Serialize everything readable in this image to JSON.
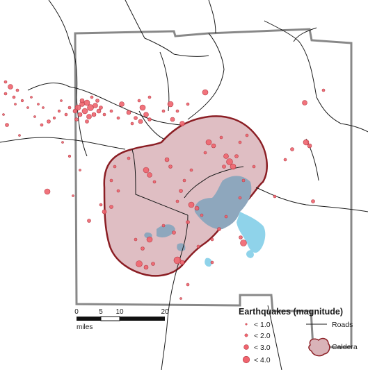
{
  "colors": {
    "quake_fill": "#f0646e",
    "quake_stroke": "#b33a44",
    "caldera_fill": "#d9b3b8",
    "caldera_stroke": "#8b1e24",
    "lake": "#8fd3ea",
    "lake_over_caldera": "#8ea7bd",
    "road": "#1a1a1a",
    "boundary": "#888888"
  },
  "scale_bar": {
    "ticks": [
      "0",
      "5",
      "10",
      "20"
    ],
    "unit": "miles"
  },
  "legend": {
    "title": "Earthquakes (magnitude)",
    "magnitudes": [
      "< 1.0",
      "< 2.0",
      "< 3.0",
      "< 4.0"
    ],
    "roads_label": "Roads",
    "caldera_label": "Caldera"
  }
}
